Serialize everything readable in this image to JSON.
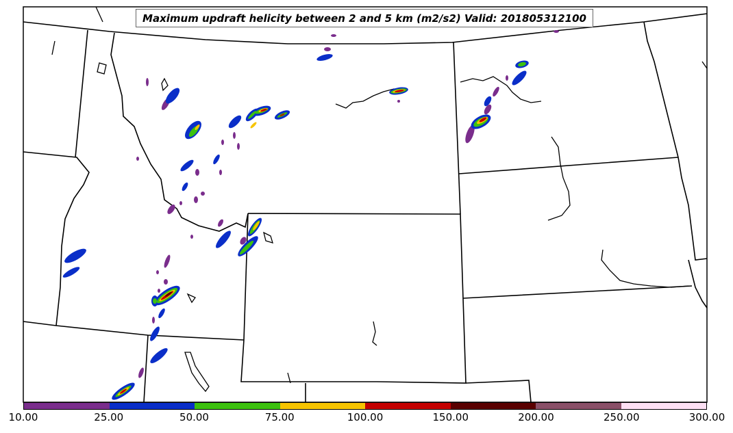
{
  "title": "Maximum updraft helicity between 2 and 5 km (m2/s2) Valid: 201805312100",
  "colorbar": {
    "colors": [
      "#7a2d8c",
      "#0a2ec8",
      "#3cc10e",
      "#f7c400",
      "#c40000",
      "#5a0000",
      "#8a5068",
      "#fde0f4"
    ],
    "tick_labels": [
      "10.00",
      "25.00",
      "50.00",
      "75.00",
      "100.00",
      "150.00",
      "200.00",
      "250.00",
      "300.00"
    ]
  }
}
